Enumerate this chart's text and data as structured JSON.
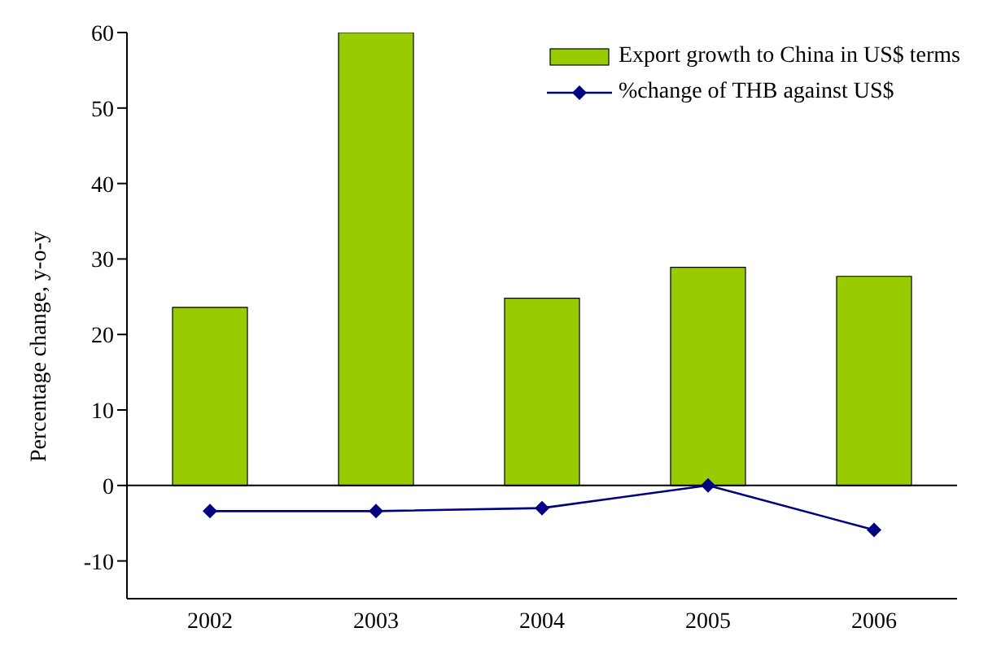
{
  "chart_data": {
    "type": "bar",
    "ylabel": "Percentage change, y-o-y",
    "categories": [
      "2002",
      "2003",
      "2004",
      "2005",
      "2006"
    ],
    "series": [
      {
        "name": "Export growth to China in US$ terms",
        "color": "#99cc00",
        "values": [
          23.6,
          60,
          24.8,
          28.9,
          27.7
        ]
      },
      {
        "name": "%change of THB against US$",
        "type": "line",
        "color": "#000080",
        "values": [
          -3.4,
          -3.4,
          -3.0,
          0,
          -5.9
        ]
      }
    ],
    "ylim": [
      -15,
      60
    ],
    "yticks": [
      -10,
      0,
      10,
      20,
      30,
      40,
      50,
      60
    ],
    "grid": false,
    "legend": "top right",
    "marker": "diamond",
    "line_style": "solid",
    "ref_lines": [
      {
        "axis": "y",
        "value": 0,
        "color": "#000000"
      }
    ]
  }
}
